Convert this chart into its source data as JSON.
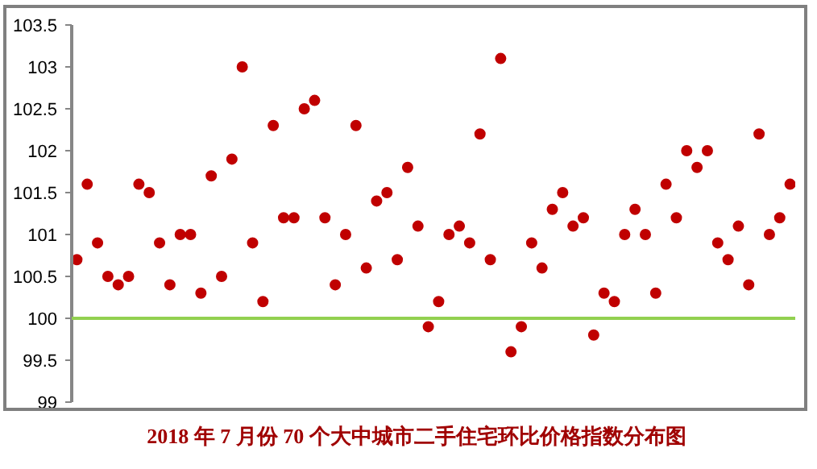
{
  "chart_data": {
    "type": "scatter",
    "title": "2018 年 7 月份 70 个大中城市二手住宅环比价格指数分布图",
    "categories": [
      null,
      null,
      null,
      null,
      null,
      null,
      null,
      null,
      null,
      null,
      null,
      null,
      null,
      null,
      null,
      null,
      null,
      null,
      null,
      null,
      null,
      null,
      null,
      null,
      null,
      null,
      null,
      null,
      null,
      null,
      null,
      null,
      null,
      null,
      null,
      null,
      null,
      null,
      null,
      null,
      null,
      null,
      null,
      null,
      null,
      null,
      null,
      null,
      null,
      null,
      null,
      null,
      null,
      null,
      null,
      null,
      null,
      null,
      null,
      null,
      null,
      null,
      null,
      null,
      null,
      null,
      null,
      null,
      null,
      null
    ],
    "series": [
      {
        "color": "#c00000",
        "values": [
          100.7,
          101.6,
          100.9,
          100.5,
          100.4,
          100.5,
          101.6,
          101.5,
          100.9,
          100.4,
          101.0,
          101.0,
          100.3,
          101.7,
          100.5,
          101.9,
          103.0,
          100.9,
          100.2,
          102.3,
          101.2,
          101.2,
          102.5,
          102.6,
          101.2,
          100.4,
          101.0,
          102.3,
          100.6,
          101.4,
          101.5,
          100.7,
          101.8,
          101.1,
          99.9,
          100.2,
          101.0,
          101.1,
          100.9,
          102.2,
          100.7,
          103.1,
          99.6,
          99.9,
          100.9,
          100.6,
          101.3,
          101.5,
          101.1,
          101.2,
          99.8,
          100.3,
          100.2,
          101.0,
          101.3,
          101.0,
          100.3,
          101.6,
          101.2,
          102.0,
          101.8,
          102.0,
          100.9,
          100.7,
          101.1,
          100.4,
          102.2,
          101.0,
          101.2,
          101.6
        ]
      }
    ],
    "ylim": [
      99,
      103.5
    ],
    "yticks": [
      99,
      99.5,
      100,
      100.5,
      101,
      101.5,
      102,
      102.5,
      103,
      103.5
    ],
    "ref_lines": [
      {
        "axis": "y",
        "value": 100,
        "color": "#92d050"
      }
    ],
    "marker": "circle",
    "grid": false
  }
}
